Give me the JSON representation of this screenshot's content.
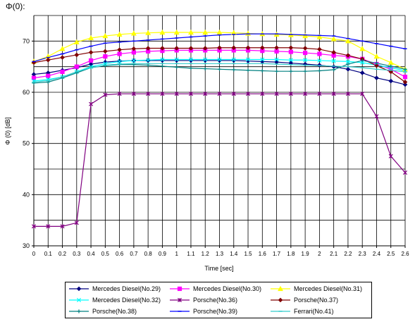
{
  "chart_data": {
    "type": "line",
    "title": "Φ(0):",
    "xlabel": "Time [sec]",
    "ylabel": "Φ (0) [dB]",
    "x": [
      0,
      0.1,
      0.2,
      0.3,
      0.4,
      0.5,
      0.6,
      0.7,
      0.8,
      0.9,
      1,
      1.1,
      1.2,
      1.3,
      1.4,
      1.5,
      1.6,
      1.7,
      1.8,
      1.9,
      2,
      2.1,
      2.2,
      2.3,
      2.4,
      2.5,
      2.6
    ],
    "x_tick_labels": [
      "0",
      "0.1",
      "0.2",
      "0.3",
      "0.4",
      "0.5",
      "0.6",
      "0.7",
      "0.8",
      "0.9",
      "1",
      "1.1",
      "1.2",
      "1.3",
      "1.4",
      "1.5",
      "1.6",
      "1.7",
      "1.8",
      "1.9",
      "2",
      "2.1",
      "2.2",
      "2.3",
      "2.4",
      "2.5",
      "2.6"
    ],
    "ylim": [
      30,
      75
    ],
    "y_ticks": [
      30,
      40,
      50,
      60,
      70
    ],
    "y_tick_labels": [
      "30",
      "40",
      "50",
      "60",
      "70"
    ],
    "grid": true,
    "legend_position": "bottom",
    "series": [
      {
        "name": "Mercedes Diesel(No.29)",
        "color": "#000080",
        "marker": "diamond",
        "values": [
          63.5,
          63.8,
          64.3,
          64.8,
          65.5,
          65.9,
          66.1,
          66.2,
          66.2,
          66.2,
          66.2,
          66.2,
          66.2,
          66.2,
          66.2,
          66.1,
          66.0,
          65.9,
          65.7,
          65.5,
          65.3,
          65.0,
          64.5,
          63.8,
          62.8,
          62.2,
          61.5
        ]
      },
      {
        "name": "Mercedes Diesel(No.30)",
        "color": "#ff00ff",
        "marker": "square",
        "values": [
          62.8,
          63.2,
          64.0,
          65.0,
          66.2,
          67.0,
          67.5,
          67.8,
          68.0,
          68.1,
          68.2,
          68.2,
          68.2,
          68.2,
          68.2,
          68.2,
          68.1,
          68.0,
          67.9,
          67.7,
          67.5,
          67.2,
          67.0,
          66.5,
          65.5,
          64.5,
          63.0
        ]
      },
      {
        "name": "Mercedes Diesel(No.31)",
        "color": "#ffff00",
        "marker": "triangle",
        "values": [
          66.0,
          67.0,
          68.5,
          69.8,
          70.6,
          71.0,
          71.3,
          71.5,
          71.6,
          71.7,
          71.7,
          71.7,
          71.7,
          71.7,
          71.6,
          71.5,
          71.4,
          71.3,
          71.2,
          71.0,
          70.8,
          70.4,
          70.0,
          68.5,
          67.0,
          65.8,
          64.5
        ]
      },
      {
        "name": "Mercedes Diesel(No.32)",
        "color": "#00ffff",
        "marker": "x",
        "values": [
          62.2,
          62.5,
          63.0,
          64.0,
          65.0,
          65.6,
          66.0,
          66.2,
          66.3,
          66.4,
          66.4,
          66.4,
          66.4,
          66.4,
          66.4,
          66.4,
          66.4,
          66.4,
          66.3,
          66.3,
          66.2,
          66.1,
          66.0,
          65.8,
          65.3,
          64.8,
          64.2
        ]
      },
      {
        "name": "Porsche(No.36)",
        "color": "#800080",
        "marker": "star",
        "values": [
          33.8,
          33.8,
          33.8,
          34.5,
          57.7,
          59.5,
          59.7,
          59.7,
          59.7,
          59.7,
          59.7,
          59.7,
          59.7,
          59.7,
          59.7,
          59.7,
          59.7,
          59.7,
          59.7,
          59.7,
          59.7,
          59.7,
          59.7,
          59.7,
          55.3,
          47.5,
          44.3
        ]
      },
      {
        "name": "Porsche(No.37)",
        "color": "#800000",
        "marker": "diamond",
        "values": [
          65.8,
          66.3,
          66.8,
          67.3,
          67.8,
          68.0,
          68.3,
          68.5,
          68.6,
          68.6,
          68.6,
          68.6,
          68.6,
          68.7,
          68.7,
          68.7,
          68.7,
          68.7,
          68.7,
          68.6,
          68.4,
          67.8,
          67.2,
          66.5,
          65.2,
          64.0,
          62.0
        ]
      },
      {
        "name": "Porsche(No.38)",
        "color": "#008080",
        "marker": "plus",
        "values": [
          61.8,
          62.0,
          62.8,
          63.8,
          64.8,
          65.2,
          65.4,
          65.4,
          65.3,
          65.1,
          64.9,
          64.7,
          64.6,
          64.5,
          64.4,
          64.3,
          64.2,
          64.1,
          64.1,
          64.1,
          64.2,
          64.4,
          65.5,
          66.2,
          65.7,
          65.1,
          64.5
        ]
      },
      {
        "name": "Porsche(No.39)",
        "color": "#0000ff",
        "marker": "dash",
        "values": [
          66.0,
          66.8,
          67.5,
          68.3,
          69.0,
          69.6,
          69.8,
          70.0,
          70.2,
          70.4,
          70.6,
          70.8,
          71.0,
          71.2,
          71.3,
          71.4,
          71.4,
          71.4,
          71.3,
          71.2,
          71.1,
          71.0,
          70.5,
          70.0,
          69.5,
          69.0,
          68.5
        ]
      },
      {
        "name": "Ferrari(No.41)",
        "color": "#33cccc",
        "marker": "dash",
        "values": [
          62.0,
          62.3,
          63.0,
          64.0,
          64.8,
          65.3,
          65.5,
          65.6,
          65.6,
          65.6,
          65.6,
          65.6,
          65.6,
          65.6,
          65.6,
          65.6,
          65.6,
          65.5,
          65.4,
          65.3,
          65.2,
          65.1,
          65.0,
          64.8,
          64.5,
          64.3,
          64.0
        ]
      }
    ]
  }
}
